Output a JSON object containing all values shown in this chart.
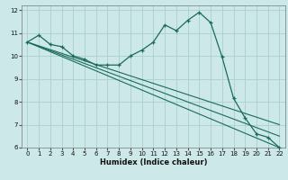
{
  "xlabel": "Humidex (Indice chaleur)",
  "bg_color": "#cce8e8",
  "grid_color": "#aacfcf",
  "line_color": "#1a6b5a",
  "xlim": [
    -0.5,
    22.5
  ],
  "ylim": [
    6,
    12.2
  ],
  "xticks": [
    0,
    1,
    2,
    3,
    4,
    5,
    6,
    7,
    8,
    9,
    10,
    11,
    12,
    13,
    14,
    15,
    16,
    17,
    18,
    19,
    20,
    21,
    22
  ],
  "yticks": [
    6,
    7,
    8,
    9,
    10,
    11,
    12
  ],
  "main_x": [
    0,
    1,
    2,
    3,
    4,
    5,
    6,
    7,
    8,
    9,
    10,
    11,
    12,
    13,
    14,
    15,
    16,
    17,
    18,
    19,
    20,
    21,
    22
  ],
  "main_y": [
    10.6,
    10.9,
    10.5,
    10.4,
    10.0,
    9.85,
    9.6,
    9.6,
    9.6,
    10.0,
    10.25,
    10.6,
    11.35,
    11.1,
    11.55,
    11.9,
    11.45,
    9.95,
    8.15,
    7.3,
    6.6,
    6.45,
    6.0
  ],
  "line1_x": [
    0,
    22
  ],
  "line1_y": [
    10.6,
    6.0
  ],
  "line2_x": [
    0,
    22
  ],
  "line2_y": [
    10.6,
    6.5
  ],
  "line3_x": [
    0,
    22
  ],
  "line3_y": [
    10.6,
    7.0
  ]
}
